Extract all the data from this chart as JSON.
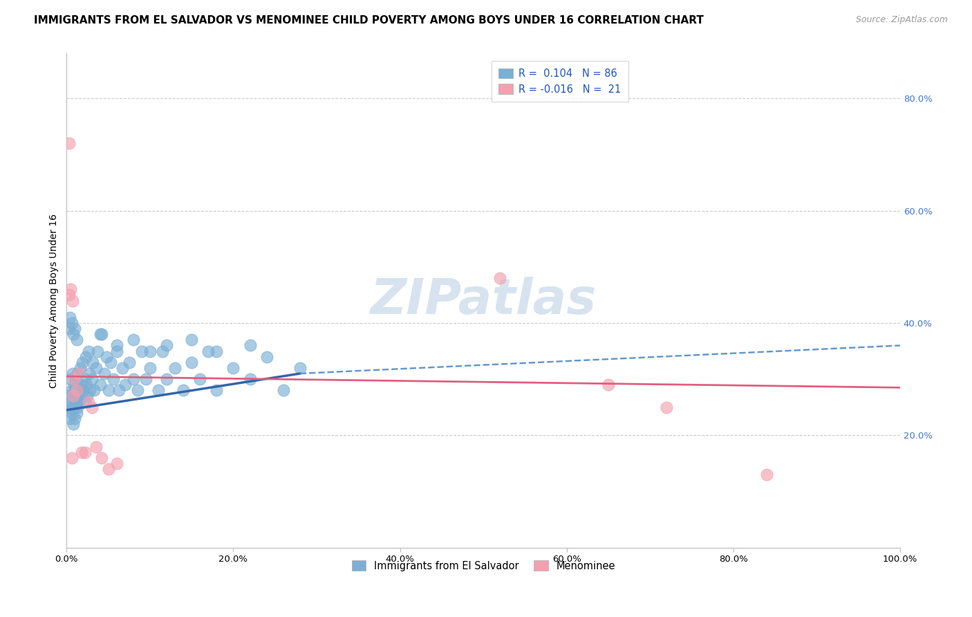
{
  "title": "IMMIGRANTS FROM EL SALVADOR VS MENOMINEE CHILD POVERTY AMONG BOYS UNDER 16 CORRELATION CHART",
  "source": "Source: ZipAtlas.com",
  "ylabel": "Child Poverty Among Boys Under 16",
  "xlim": [
    0.0,
    1.0
  ],
  "ylim": [
    0.0,
    0.88
  ],
  "xticks": [
    0.0,
    0.2,
    0.4,
    0.6,
    0.8,
    1.0
  ],
  "xticklabels": [
    "0.0%",
    "20.0%",
    "40.0%",
    "60.0%",
    "80.0%",
    "100.0%"
  ],
  "right_yticks": [
    0.2,
    0.4,
    0.6,
    0.8
  ],
  "right_yticklabels": [
    "20.0%",
    "40.0%",
    "60.0%",
    "80.0%"
  ],
  "grid_color": "#cccccc",
  "watermark": "ZIPatlas",
  "blue_color": "#7bafd4",
  "pink_color": "#f4a0b0",
  "blue_line_color": "#3366aa",
  "pink_line_color": "#e06080",
  "blue_dashed_color": "#6699cc",
  "legend_blue_R": "R =  0.104",
  "legend_blue_N": "N = 86",
  "legend_pink_R": "R = -0.016",
  "legend_pink_N": "N =  21",
  "title_fontsize": 11,
  "axis_label_fontsize": 10,
  "tick_fontsize": 9.5,
  "legend_fontsize": 10.5,
  "watermark_fontsize": 52,
  "watermark_color": "#c8d8ea",
  "right_tick_color": "#4477cc",
  "blue_scatter_x": [
    0.002,
    0.003,
    0.004,
    0.005,
    0.005,
    0.006,
    0.006,
    0.007,
    0.007,
    0.008,
    0.008,
    0.009,
    0.009,
    0.01,
    0.01,
    0.011,
    0.011,
    0.012,
    0.012,
    0.013,
    0.013,
    0.014,
    0.015,
    0.016,
    0.017,
    0.018,
    0.019,
    0.02,
    0.021,
    0.022,
    0.023,
    0.024,
    0.025,
    0.026,
    0.027,
    0.028,
    0.03,
    0.031,
    0.033,
    0.035,
    0.037,
    0.04,
    0.042,
    0.045,
    0.048,
    0.05,
    0.053,
    0.056,
    0.06,
    0.063,
    0.067,
    0.07,
    0.075,
    0.08,
    0.085,
    0.09,
    0.095,
    0.1,
    0.11,
    0.115,
    0.12,
    0.13,
    0.14,
    0.15,
    0.16,
    0.17,
    0.18,
    0.2,
    0.22,
    0.24,
    0.26,
    0.28,
    0.04,
    0.06,
    0.08,
    0.1,
    0.12,
    0.15,
    0.18,
    0.22,
    0.003,
    0.004,
    0.006,
    0.008,
    0.01,
    0.012
  ],
  "blue_scatter_y": [
    0.25,
    0.27,
    0.23,
    0.3,
    0.26,
    0.28,
    0.24,
    0.31,
    0.25,
    0.27,
    0.22,
    0.29,
    0.25,
    0.28,
    0.23,
    0.3,
    0.26,
    0.24,
    0.27,
    0.31,
    0.25,
    0.28,
    0.26,
    0.32,
    0.29,
    0.27,
    0.33,
    0.28,
    0.3,
    0.26,
    0.34,
    0.29,
    0.27,
    0.35,
    0.31,
    0.28,
    0.3,
    0.33,
    0.28,
    0.32,
    0.35,
    0.29,
    0.38,
    0.31,
    0.34,
    0.28,
    0.33,
    0.3,
    0.35,
    0.28,
    0.32,
    0.29,
    0.33,
    0.3,
    0.28,
    0.35,
    0.3,
    0.32,
    0.28,
    0.35,
    0.3,
    0.32,
    0.28,
    0.33,
    0.3,
    0.35,
    0.28,
    0.32,
    0.3,
    0.34,
    0.28,
    0.32,
    0.38,
    0.36,
    0.37,
    0.35,
    0.36,
    0.37,
    0.35,
    0.36,
    0.39,
    0.41,
    0.4,
    0.38,
    0.39,
    0.37
  ],
  "pink_scatter_x": [
    0.003,
    0.005,
    0.007,
    0.009,
    0.012,
    0.015,
    0.018,
    0.022,
    0.026,
    0.03,
    0.035,
    0.042,
    0.05,
    0.06,
    0.003,
    0.006,
    0.008,
    0.52,
    0.65,
    0.72,
    0.84
  ],
  "pink_scatter_y": [
    0.72,
    0.46,
    0.44,
    0.3,
    0.28,
    0.31,
    0.17,
    0.17,
    0.26,
    0.25,
    0.18,
    0.16,
    0.14,
    0.15,
    0.45,
    0.16,
    0.27,
    0.48,
    0.29,
    0.25,
    0.13
  ],
  "blue_solid_trend_x": [
    0.0,
    0.28
  ],
  "blue_solid_trend_y": [
    0.245,
    0.31
  ],
  "blue_dashed_trend_x": [
    0.28,
    1.0
  ],
  "blue_dashed_trend_y": [
    0.31,
    0.36
  ],
  "pink_solid_trend_x": [
    0.0,
    1.0
  ],
  "pink_solid_trend_y": [
    0.305,
    0.285
  ]
}
